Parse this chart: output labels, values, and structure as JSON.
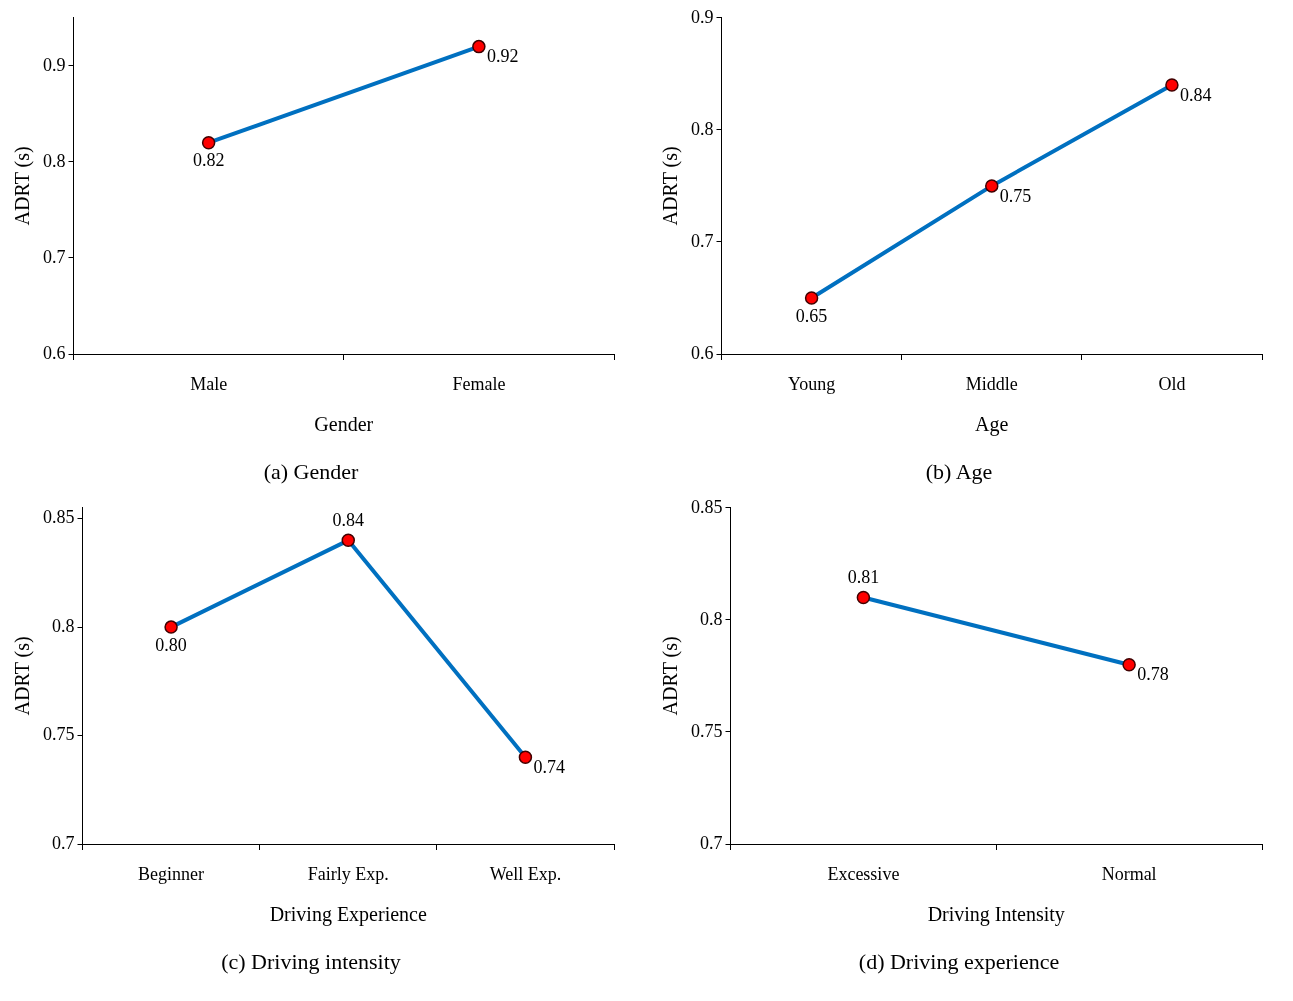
{
  "chart_data": [
    {
      "type": "line",
      "title": "(a) Gender",
      "xlabel": "Gender",
      "ylabel": "ADRT (s)",
      "categories": [
        "Male",
        "Female"
      ],
      "series": [
        {
          "color": "#0070c0",
          "values": [
            0.82,
            0.92
          ],
          "value_labels": [
            "0.82",
            "0.92"
          ]
        }
      ],
      "ylim": [
        0.6,
        0.95
      ],
      "yticks": [
        0.6,
        0.7,
        0.8,
        0.9
      ],
      "grid": false,
      "legend": false,
      "marker": "circle"
    },
    {
      "type": "line",
      "title": "(b) Age",
      "xlabel": "Age",
      "ylabel": "ADRT (s)",
      "categories": [
        "Young",
        "Middle",
        "Old"
      ],
      "series": [
        {
          "color": "#0070c0",
          "values": [
            0.65,
            0.75,
            0.84
          ],
          "value_labels": [
            "0.65",
            "0.75",
            "0.84"
          ]
        }
      ],
      "ylim": [
        0.6,
        0.9
      ],
      "yticks": [
        0.6,
        0.7,
        0.8,
        0.9
      ],
      "grid": false,
      "legend": false,
      "marker": "circle"
    },
    {
      "type": "line",
      "title": "(c) Driving intensity",
      "xlabel": "Driving Experience",
      "ylabel": "ADRT (s)",
      "categories": [
        "Beginner",
        "Fairly Exp.",
        "Well Exp."
      ],
      "series": [
        {
          "color": "#0070c0",
          "values": [
            0.8,
            0.84,
            0.74
          ],
          "value_labels": [
            "0.80",
            "0.84",
            "0.74"
          ]
        }
      ],
      "ylim": [
        0.7,
        0.855
      ],
      "yticks": [
        0.7,
        0.75,
        0.8,
        0.85
      ],
      "grid": false,
      "legend": false,
      "marker": "circle"
    },
    {
      "type": "line",
      "title": "(d) Driving experience",
      "xlabel": "Driving Intensity",
      "ylabel": "ADRT (s)",
      "categories": [
        "Excessive",
        "Normal"
      ],
      "series": [
        {
          "color": "#0070c0",
          "values": [
            0.81,
            0.78
          ],
          "value_labels": [
            "0.81",
            "0.78"
          ]
        }
      ],
      "ylim": [
        0.7,
        0.85
      ],
      "yticks": [
        0.7,
        0.75,
        0.8,
        0.85
      ],
      "grid": false,
      "legend": false,
      "marker": "circle"
    }
  ]
}
